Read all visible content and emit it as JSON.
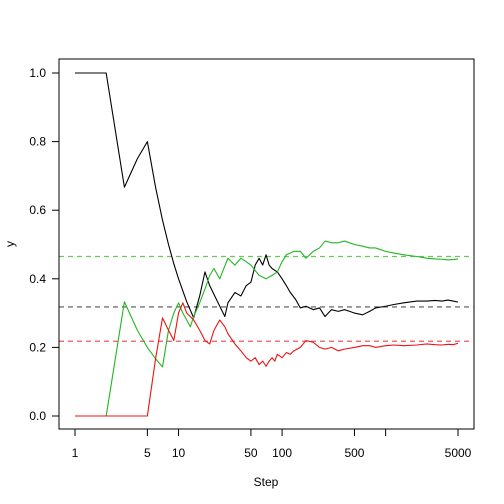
{
  "chart_data": {
    "type": "line",
    "title": "",
    "xlabel": "Step",
    "ylabel": "y",
    "x_scale": "log",
    "xlim": [
      1,
      5000
    ],
    "ylim": [
      0,
      1
    ],
    "x_ticks": [
      1,
      5,
      10,
      50,
      100,
      500,
      1000,
      5000
    ],
    "x_tick_labels": [
      "1",
      "5",
      "10",
      "50",
      "100",
      "500",
      "",
      "5000"
    ],
    "y_ticks": [
      0.0,
      0.2,
      0.4,
      0.6,
      0.8,
      1.0
    ],
    "y_tick_labels": [
      "0.0",
      "0.2",
      "0.4",
      "0.6",
      "0.8",
      "1.0"
    ],
    "grid": false,
    "legend": "none",
    "series": [
      {
        "color": "#000000",
        "points": [
          [
            1,
            1.0
          ],
          [
            2,
            1.0
          ],
          [
            3,
            0.667
          ],
          [
            4,
            0.75
          ],
          [
            5,
            0.8
          ],
          [
            6,
            0.667
          ],
          [
            7,
            0.571
          ],
          [
            8,
            0.5
          ],
          [
            9,
            0.444
          ],
          [
            10,
            0.4
          ],
          [
            12,
            0.333
          ],
          [
            14,
            0.286
          ],
          [
            16,
            0.35
          ],
          [
            18,
            0.42
          ],
          [
            20,
            0.38
          ],
          [
            25,
            0.32
          ],
          [
            28,
            0.29
          ],
          [
            30,
            0.33
          ],
          [
            35,
            0.36
          ],
          [
            40,
            0.35
          ],
          [
            45,
            0.38
          ],
          [
            50,
            0.39
          ],
          [
            55,
            0.44
          ],
          [
            60,
            0.46
          ],
          [
            65,
            0.44
          ],
          [
            70,
            0.47
          ],
          [
            75,
            0.44
          ],
          [
            80,
            0.43
          ],
          [
            90,
            0.42
          ],
          [
            100,
            0.4
          ],
          [
            110,
            0.38
          ],
          [
            120,
            0.36
          ],
          [
            135,
            0.34
          ],
          [
            150,
            0.315
          ],
          [
            170,
            0.32
          ],
          [
            200,
            0.31
          ],
          [
            230,
            0.315
          ],
          [
            260,
            0.29
          ],
          [
            300,
            0.31
          ],
          [
            350,
            0.305
          ],
          [
            400,
            0.31
          ],
          [
            450,
            0.305
          ],
          [
            500,
            0.3
          ],
          [
            600,
            0.295
          ],
          [
            700,
            0.305
          ],
          [
            800,
            0.315
          ],
          [
            1000,
            0.32
          ],
          [
            1200,
            0.325
          ],
          [
            1500,
            0.33
          ],
          [
            2000,
            0.335
          ],
          [
            2500,
            0.335
          ],
          [
            3000,
            0.337
          ],
          [
            3500,
            0.335
          ],
          [
            4000,
            0.338
          ],
          [
            4500,
            0.335
          ],
          [
            5000,
            0.332
          ]
        ]
      },
      {
        "color": "#22b522",
        "points": [
          [
            1,
            0.0
          ],
          [
            2,
            0.0
          ],
          [
            3,
            0.333
          ],
          [
            4,
            0.25
          ],
          [
            5,
            0.2
          ],
          [
            6,
            0.167
          ],
          [
            7,
            0.143
          ],
          [
            8,
            0.25
          ],
          [
            9,
            0.3
          ],
          [
            10,
            0.33
          ],
          [
            11,
            0.3
          ],
          [
            12,
            0.28
          ],
          [
            13,
            0.26
          ],
          [
            14,
            0.29
          ],
          [
            16,
            0.33
          ],
          [
            18,
            0.37
          ],
          [
            20,
            0.41
          ],
          [
            22,
            0.43
          ],
          [
            25,
            0.4
          ],
          [
            30,
            0.46
          ],
          [
            35,
            0.44
          ],
          [
            40,
            0.46
          ],
          [
            45,
            0.45
          ],
          [
            50,
            0.44
          ],
          [
            60,
            0.41
          ],
          [
            70,
            0.4
          ],
          [
            80,
            0.41
          ],
          [
            90,
            0.42
          ],
          [
            100,
            0.45
          ],
          [
            110,
            0.47
          ],
          [
            130,
            0.48
          ],
          [
            150,
            0.48
          ],
          [
            170,
            0.46
          ],
          [
            200,
            0.48
          ],
          [
            230,
            0.49
          ],
          [
            260,
            0.51
          ],
          [
            300,
            0.505
          ],
          [
            350,
            0.505
          ],
          [
            400,
            0.51
          ],
          [
            500,
            0.5
          ],
          [
            600,
            0.495
          ],
          [
            700,
            0.49
          ],
          [
            800,
            0.49
          ],
          [
            1000,
            0.48
          ],
          [
            1200,
            0.475
          ],
          [
            1500,
            0.47
          ],
          [
            2000,
            0.465
          ],
          [
            2500,
            0.46
          ],
          [
            3000,
            0.458
          ],
          [
            3500,
            0.457
          ],
          [
            4000,
            0.455
          ],
          [
            4500,
            0.456
          ],
          [
            5000,
            0.458
          ]
        ]
      },
      {
        "color": "#ee1111",
        "points": [
          [
            1,
            0.0
          ],
          [
            2,
            0.0
          ],
          [
            3,
            0.0
          ],
          [
            4,
            0.0
          ],
          [
            5,
            0.0
          ],
          [
            6,
            0.167
          ],
          [
            7,
            0.286
          ],
          [
            8,
            0.25
          ],
          [
            9,
            0.22
          ],
          [
            10,
            0.3
          ],
          [
            11,
            0.33
          ],
          [
            12,
            0.3
          ],
          [
            14,
            0.28
          ],
          [
            16,
            0.25
          ],
          [
            18,
            0.22
          ],
          [
            20,
            0.21
          ],
          [
            22,
            0.25
          ],
          [
            25,
            0.28
          ],
          [
            28,
            0.26
          ],
          [
            30,
            0.24
          ],
          [
            35,
            0.21
          ],
          [
            40,
            0.19
          ],
          [
            45,
            0.17
          ],
          [
            50,
            0.16
          ],
          [
            55,
            0.17
          ],
          [
            60,
            0.15
          ],
          [
            65,
            0.16
          ],
          [
            70,
            0.145
          ],
          [
            75,
            0.16
          ],
          [
            80,
            0.17
          ],
          [
            85,
            0.16
          ],
          [
            90,
            0.18
          ],
          [
            100,
            0.17
          ],
          [
            110,
            0.185
          ],
          [
            120,
            0.18
          ],
          [
            130,
            0.19
          ],
          [
            150,
            0.2
          ],
          [
            170,
            0.22
          ],
          [
            200,
            0.215
          ],
          [
            230,
            0.2
          ],
          [
            260,
            0.195
          ],
          [
            300,
            0.2
          ],
          [
            350,
            0.19
          ],
          [
            400,
            0.195
          ],
          [
            500,
            0.2
          ],
          [
            600,
            0.205
          ],
          [
            700,
            0.205
          ],
          [
            800,
            0.2
          ],
          [
            1000,
            0.205
          ],
          [
            1200,
            0.207
          ],
          [
            1500,
            0.205
          ],
          [
            2000,
            0.207
          ],
          [
            2500,
            0.21
          ],
          [
            3000,
            0.208
          ],
          [
            3500,
            0.207
          ],
          [
            4000,
            0.209
          ],
          [
            4500,
            0.208
          ],
          [
            5000,
            0.212
          ]
        ]
      }
    ],
    "reference_lines": [
      {
        "color": "#555555",
        "y": 0.318,
        "style": "dashed"
      },
      {
        "color": "#66cc55",
        "y": 0.465,
        "style": "dashed"
      },
      {
        "color": "#ee5566",
        "y": 0.218,
        "style": "dashed"
      }
    ]
  }
}
